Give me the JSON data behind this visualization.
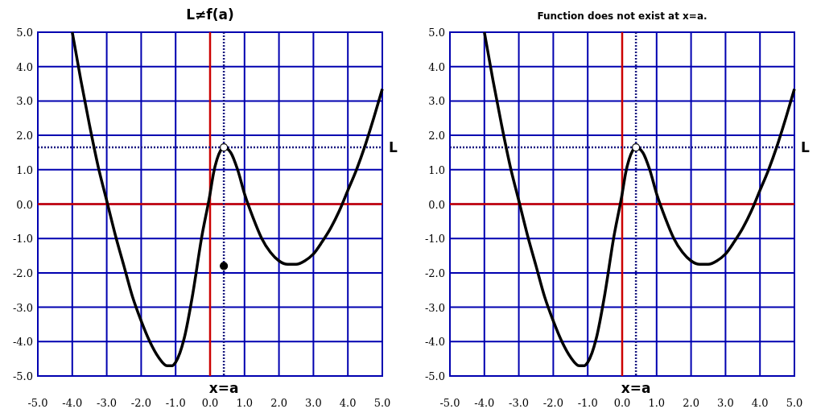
{
  "chart_data": [
    {
      "type": "line",
      "title": "L≠f(a)",
      "xlim": [
        -5,
        5
      ],
      "ylim": [
        -5,
        5
      ],
      "xticks": [
        {
          "value": -5,
          "label": "-5.0"
        },
        {
          "value": -4,
          "label": "-4.0"
        },
        {
          "value": -3,
          "label": "-3.0"
        },
        {
          "value": -2,
          "label": "-2.0"
        },
        {
          "value": -1,
          "label": "-1.0"
        },
        {
          "value": 0,
          "label": "0.0"
        },
        {
          "value": 1,
          "label": "1.0"
        },
        {
          "value": 2,
          "label": "2.0"
        },
        {
          "value": 3,
          "label": "3.0"
        },
        {
          "value": 4,
          "label": "4.0"
        },
        {
          "value": 5,
          "label": "5.0"
        }
      ],
      "yticks": [
        {
          "value": -5,
          "label": "-5.0"
        },
        {
          "value": -4,
          "label": "-4.0"
        },
        {
          "value": -3,
          "label": "-3.0"
        },
        {
          "value": -2,
          "label": "-2.0"
        },
        {
          "value": -1,
          "label": "-1.0"
        },
        {
          "value": 0,
          "label": "0.0"
        },
        {
          "value": 1,
          "label": "1.0"
        },
        {
          "value": 2,
          "label": "2.0"
        },
        {
          "value": 3,
          "label": "3.0"
        },
        {
          "value": 4,
          "label": "4.0"
        },
        {
          "value": 5,
          "label": "5.0"
        }
      ],
      "grid": true,
      "series": [
        {
          "type": "line",
          "color": "#000000",
          "marker": "none",
          "x": [
            -4,
            -3.75,
            -3.5,
            -3.25,
            -3,
            -2.75,
            -2.5,
            -2.25,
            -2,
            -1.75,
            -1.5,
            -1.25,
            -1.1,
            -1,
            -0.75,
            -0.5,
            -0.25,
            0,
            0.1,
            0.2,
            0.3,
            0.4,
            0.6,
            0.8,
            1,
            1.25,
            1.5,
            1.75,
            2,
            2.25,
            2.5,
            2.75,
            3,
            3.25,
            3.5,
            3.75,
            4,
            4.25,
            4.5,
            4.75,
            5
          ],
          "values": [
            5,
            3.6,
            2.3,
            1.1,
            0.1,
            -0.9,
            -1.8,
            -2.7,
            -3.4,
            -4,
            -4.45,
            -4.7,
            -4.7,
            -4.6,
            -3.9,
            -2.6,
            -1,
            0.3,
            0.9,
            1.3,
            1.55,
            1.65,
            1.5,
            1,
            0.3,
            -0.4,
            -1,
            -1.4,
            -1.65,
            -1.75,
            -1.75,
            -1.65,
            -1.45,
            -1.1,
            -0.7,
            -0.2,
            0.4,
            1,
            1.7,
            2.5,
            3.35
          ]
        },
        {
          "type": "scatter",
          "color": "#ffffff",
          "marker": "circle",
          "x": [
            0.4
          ],
          "values": [
            1.65
          ]
        },
        {
          "type": "scatter",
          "color": "#000000",
          "marker": "circle",
          "x": [
            0.4
          ],
          "values": [
            -1.8
          ]
        }
      ],
      "ref_lines": [
        {
          "axis": "x",
          "value": 0.4,
          "label": "x=a",
          "color": "#1a1a80",
          "line_style": "dotted"
        },
        {
          "axis": "y",
          "value": 1.65,
          "label": "L",
          "color": "#1a1a80",
          "line_style": "dotted"
        }
      ]
    },
    {
      "type": "line",
      "title": "Function does not exist at x=a.",
      "xlim": [
        -5,
        5
      ],
      "ylim": [
        -5,
        5
      ],
      "xticks": [
        {
          "value": -5,
          "label": "-5.0"
        },
        {
          "value": -4,
          "label": "-4.0"
        },
        {
          "value": -3,
          "label": "-3.0"
        },
        {
          "value": -2,
          "label": "-2.0"
        },
        {
          "value": -1,
          "label": "-1.0"
        },
        {
          "value": 0,
          "label": "0.0"
        },
        {
          "value": 1,
          "label": "1.0"
        },
        {
          "value": 2,
          "label": "2.0"
        },
        {
          "value": 3,
          "label": "3.0"
        },
        {
          "value": 4,
          "label": "4.0"
        },
        {
          "value": 5,
          "label": "5.0"
        }
      ],
      "yticks": [
        {
          "value": -5,
          "label": "-5.0"
        },
        {
          "value": -4,
          "label": "-4.0"
        },
        {
          "value": -3,
          "label": "-3.0"
        },
        {
          "value": -2,
          "label": "-2.0"
        },
        {
          "value": -1,
          "label": "-1.0"
        },
        {
          "value": 0,
          "label": "0.0"
        },
        {
          "value": 1,
          "label": "1.0"
        },
        {
          "value": 2,
          "label": "2.0"
        },
        {
          "value": 3,
          "label": "3.0"
        },
        {
          "value": 4,
          "label": "4.0"
        },
        {
          "value": 5,
          "label": "5.0"
        }
      ],
      "grid": true,
      "series": [
        {
          "type": "line",
          "color": "#000000",
          "marker": "none",
          "x": [
            -4,
            -3.75,
            -3.5,
            -3.25,
            -3,
            -2.75,
            -2.5,
            -2.25,
            -2,
            -1.75,
            -1.5,
            -1.25,
            -1.1,
            -1,
            -0.75,
            -0.5,
            -0.25,
            0,
            0.1,
            0.2,
            0.3,
            0.4,
            0.6,
            0.8,
            1,
            1.25,
            1.5,
            1.75,
            2,
            2.25,
            2.5,
            2.75,
            3,
            3.25,
            3.5,
            3.75,
            4,
            4.25,
            4.5,
            4.75,
            5
          ],
          "values": [
            5,
            3.6,
            2.3,
            1.1,
            0.1,
            -0.9,
            -1.8,
            -2.7,
            -3.4,
            -4,
            -4.45,
            -4.7,
            -4.7,
            -4.6,
            -3.9,
            -2.6,
            -1,
            0.3,
            0.9,
            1.3,
            1.55,
            1.65,
            1.5,
            1,
            0.3,
            -0.4,
            -1,
            -1.4,
            -1.65,
            -1.75,
            -1.75,
            -1.65,
            -1.45,
            -1.1,
            -0.7,
            -0.2,
            0.4,
            1,
            1.7,
            2.5,
            3.35
          ]
        },
        {
          "type": "scatter",
          "color": "#ffffff",
          "marker": "circle",
          "x": [
            0.4
          ],
          "values": [
            1.65
          ]
        }
      ],
      "ref_lines": [
        {
          "axis": "x",
          "value": 0.4,
          "label": "x=a",
          "color": "#1a1a80",
          "line_style": "dotted"
        },
        {
          "axis": "y",
          "value": 1.65,
          "label": "L",
          "color": "#1a1a80",
          "line_style": "dotted"
        }
      ]
    }
  ]
}
